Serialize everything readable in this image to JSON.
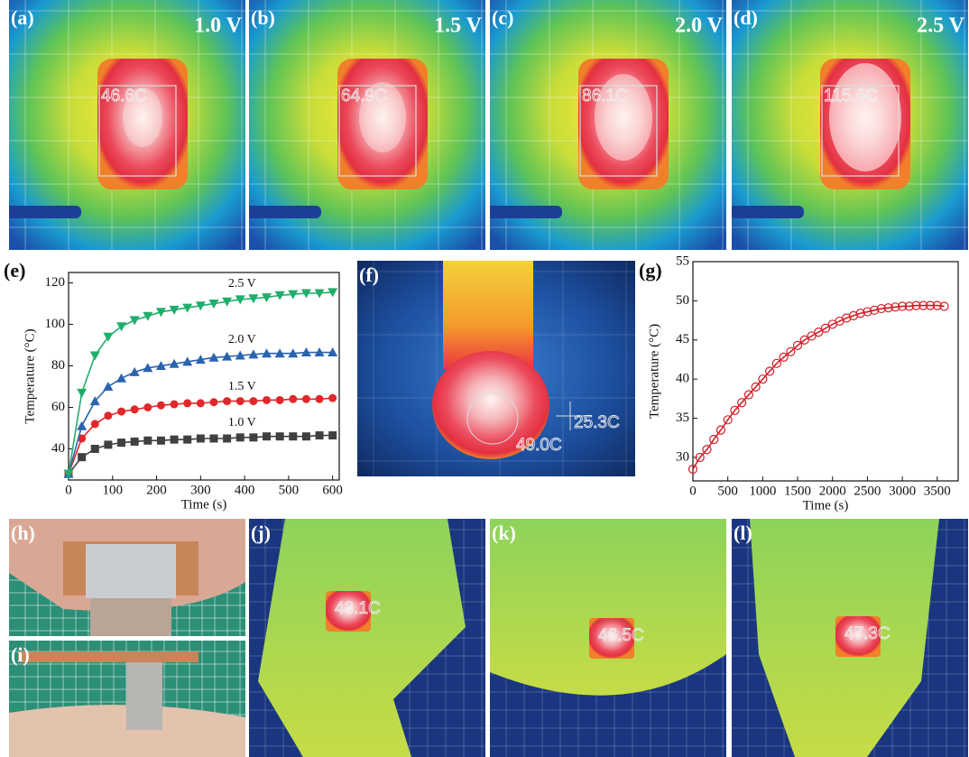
{
  "chart_data": [
    {
      "type": "line",
      "label": "(e)",
      "xlabel": "Time (s)",
      "ylabel": "Temperature (°C)",
      "x": [
        0,
        30,
        60,
        90,
        120,
        150,
        180,
        210,
        240,
        270,
        300,
        330,
        360,
        390,
        420,
        450,
        480,
        510,
        540,
        570,
        600
      ],
      "xlim": [
        0,
        615
      ],
      "xticks": [
        0,
        100,
        200,
        300,
        400,
        500,
        600
      ],
      "ylim": [
        25,
        125
      ],
      "yticks": [
        40,
        60,
        80,
        100,
        120
      ],
      "series": [
        {
          "name": "1.0 V",
          "color": "#404040",
          "marker": "square",
          "values": [
            28,
            36,
            40,
            42,
            43,
            43.5,
            44,
            44,
            44.5,
            44.5,
            45,
            45,
            45,
            45.5,
            45.5,
            46,
            46,
            46,
            46,
            46.5,
            46.5
          ]
        },
        {
          "name": "1.5 V",
          "color": "#e0282a",
          "marker": "circle",
          "values": [
            28,
            45,
            52,
            56,
            58,
            59,
            60,
            61,
            61.5,
            62,
            62,
            62.5,
            63,
            63,
            63,
            63.5,
            63.5,
            64,
            64,
            64,
            64.5
          ]
        },
        {
          "name": "2.0 V",
          "color": "#2a64b0",
          "marker": "triangle-up",
          "values": [
            28,
            51,
            63,
            70,
            74,
            77,
            79,
            80,
            81,
            82,
            83,
            84,
            84.5,
            85,
            85.5,
            86,
            86,
            86,
            86.5,
            86.5,
            86.5
          ]
        },
        {
          "name": "2.5 V",
          "color": "#1fae6c",
          "marker": "triangle-down",
          "values": [
            28,
            67,
            85,
            94,
            99,
            102,
            104,
            106,
            107,
            108,
            109,
            110,
            111,
            112,
            112.5,
            113,
            114,
            114.5,
            115,
            115,
            115.5
          ]
        }
      ]
    },
    {
      "type": "line",
      "label": "(g)",
      "xlabel": "Time (s)",
      "ylabel": "Temperature (°C)",
      "x": [
        0,
        100,
        200,
        300,
        400,
        500,
        600,
        700,
        800,
        900,
        1000,
        1100,
        1200,
        1300,
        1400,
        1500,
        1600,
        1700,
        1800,
        1900,
        2000,
        2100,
        2200,
        2300,
        2400,
        2500,
        2600,
        2700,
        2800,
        2900,
        3000,
        3100,
        3200,
        3300,
        3400,
        3500,
        3600
      ],
      "xlim": [
        0,
        3800
      ],
      "xticks": [
        0,
        500,
        1000,
        1500,
        2000,
        2500,
        3000,
        3500
      ],
      "ylim": [
        27,
        55
      ],
      "yticks": [
        30,
        35,
        40,
        45,
        50,
        55
      ],
      "series": [
        {
          "color": "#d21f26",
          "marker": "open-circle",
          "values": [
            28.5,
            30,
            31,
            32.3,
            33.5,
            34.8,
            36,
            37,
            38,
            39,
            40,
            41,
            42,
            42.8,
            43.5,
            44.3,
            45,
            45.5,
            46,
            46.5,
            47,
            47.4,
            47.8,
            48.1,
            48.4,
            48.6,
            48.8,
            49,
            49.1,
            49.2,
            49.3,
            49.3,
            49.4,
            49.4,
            49.4,
            49.4,
            49.3
          ]
        }
      ]
    }
  ],
  "thermal": [
    {
      "label": "(a)",
      "voltage": "1.0 V",
      "reading": "46.6C"
    },
    {
      "label": "(b)",
      "voltage": "1.5 V",
      "reading": "64.9C"
    },
    {
      "label": "(c)",
      "voltage": "2.0 V",
      "reading": "86.1C"
    },
    {
      "label": "(d)",
      "voltage": "2.5 V",
      "reading": "115.6C"
    }
  ],
  "panel_f": {
    "label": "(f)",
    "readings": [
      "49.0C",
      "25.3C"
    ]
  },
  "photos": [
    {
      "label": "(h)"
    },
    {
      "label": "(i)"
    }
  ],
  "wearable": [
    {
      "label": "(j)",
      "reading": "43.1C"
    },
    {
      "label": "(k)",
      "reading": "46.5C"
    },
    {
      "label": "(l)",
      "reading": "47.3C"
    }
  ]
}
